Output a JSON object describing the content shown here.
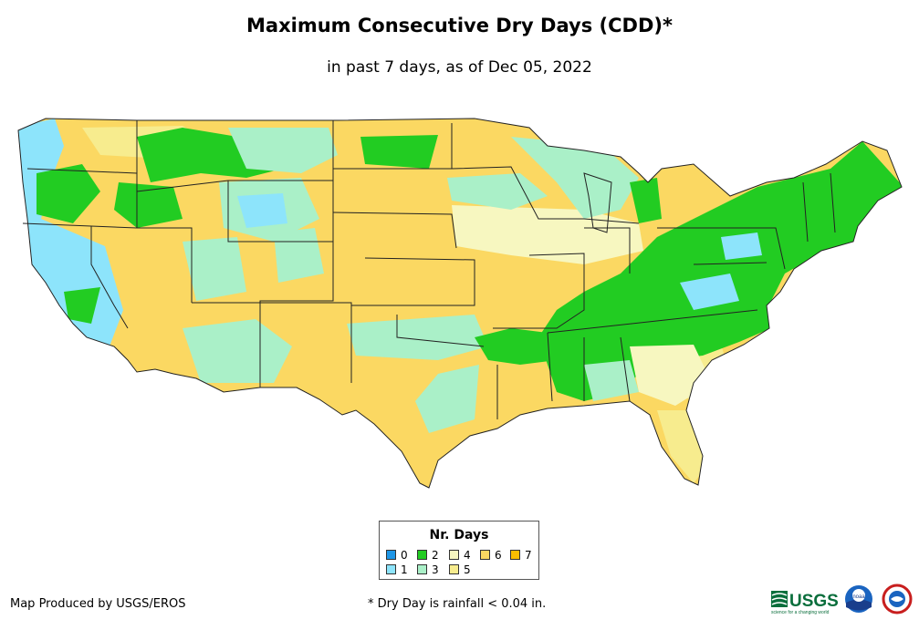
{
  "title": "Maximum Consecutive Dry Days (CDD)*",
  "subtitle": "in past 7 days, as of Dec 05, 2022",
  "legend": {
    "title": "Nr. Days",
    "items": [
      {
        "label": "0",
        "color": "#1e96e6"
      },
      {
        "label": "1",
        "color": "#8de4fb"
      },
      {
        "label": "2",
        "color": "#22cc22"
      },
      {
        "label": "3",
        "color": "#aaf0c8"
      },
      {
        "label": "4",
        "color": "#f7f7c0"
      },
      {
        "label": "5",
        "color": "#f7ec8e"
      },
      {
        "label": "6",
        "color": "#fbd862"
      },
      {
        "label": "7",
        "color": "#fabe00"
      }
    ]
  },
  "credit": "Map Produced by USGS/EROS",
  "footnote": "* Dry Day is rainfall < 0.04 in.",
  "logos": {
    "usgs": "USGS",
    "usgs_tagline": "science for a changing world",
    "noaa": "noaa"
  }
}
